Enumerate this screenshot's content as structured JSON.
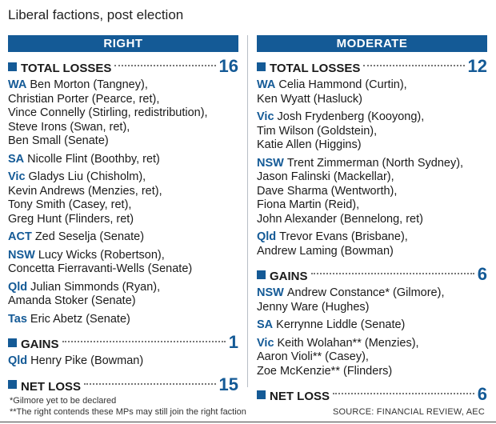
{
  "title": "Liberal factions, post election",
  "left": {
    "header": "RIGHT",
    "total_losses_label": "TOTAL LOSSES",
    "total_losses": "16",
    "groups": [
      {
        "state": "WA",
        "lines": [
          "Ben Morton (Tangney),",
          "Christian Porter (Pearce, ret),",
          "Vince Connelly (Stirling, redistribution),",
          "Steve Irons (Swan, ret),",
          "Ben Small (Senate)"
        ]
      },
      {
        "state": "SA",
        "lines": [
          "Nicolle Flint (Boothby, ret)"
        ]
      },
      {
        "state": "Vic",
        "lines": [
          "Gladys Liu (Chisholm),",
          "Kevin Andrews (Menzies, ret),",
          "Tony Smith (Casey, ret),",
          "Greg Hunt (Flinders, ret)"
        ]
      },
      {
        "state": "ACT",
        "lines": [
          "Zed Seselja (Senate)"
        ]
      },
      {
        "state": "NSW",
        "lines": [
          "Lucy Wicks (Robertson),",
          "Concetta Fierravanti-Wells (Senate)"
        ]
      },
      {
        "state": "Qld",
        "lines": [
          "Julian Simmonds (Ryan),",
          "Amanda Stoker (Senate)"
        ]
      },
      {
        "state": "Tas",
        "lines": [
          "Eric Abetz (Senate)"
        ]
      }
    ],
    "gains_label": "GAINS",
    "gains": "1",
    "gain_groups": [
      {
        "state": "Qld",
        "lines": [
          "Henry Pike (Bowman)"
        ]
      }
    ],
    "net_loss_label": "NET LOSS",
    "net_loss": "15"
  },
  "right": {
    "header": "MODERATE",
    "total_losses_label": "TOTAL LOSSES",
    "total_losses": "12",
    "groups": [
      {
        "state": "WA",
        "lines": [
          "Celia Hammond (Curtin),",
          "Ken Wyatt (Hasluck)"
        ]
      },
      {
        "state": "Vic",
        "lines": [
          "Josh Frydenberg (Kooyong),",
          "Tim Wilson (Goldstein),",
          "Katie Allen (Higgins)"
        ]
      },
      {
        "state": "NSW",
        "lines": [
          "Trent Zimmerman (North Sydney),",
          "Jason Falinski (Mackellar),",
          "Dave Sharma (Wentworth),",
          "Fiona Martin (Reid),",
          "John Alexander (Bennelong, ret)"
        ]
      },
      {
        "state": "Qld",
        "lines": [
          "Trevor Evans (Brisbane),",
          "Andrew Laming (Bowman)"
        ]
      }
    ],
    "gains_label": "GAINS",
    "gains": "6",
    "gain_groups": [
      {
        "state": "NSW",
        "lines": [
          "Andrew Constance* (Gilmore),",
          "Jenny Ware (Hughes)"
        ]
      },
      {
        "state": "SA",
        "lines": [
          "Kerrynne Liddle (Senate)"
        ]
      },
      {
        "state": "Vic",
        "lines": [
          "Keith Wolahan** (Menzies),",
          "Aaron Violi** (Casey),",
          "Zoe McKenzie** (Flinders)"
        ]
      }
    ],
    "net_loss_label": "NET LOSS",
    "net_loss": "6"
  },
  "footnotes": [
    "*Gilmore yet to be declared",
    "**The right contends these MPs may still join the right faction"
  ],
  "source": "SOURCE: FINANCIAL REVIEW, AEC",
  "colors": {
    "accent": "#145a96"
  }
}
